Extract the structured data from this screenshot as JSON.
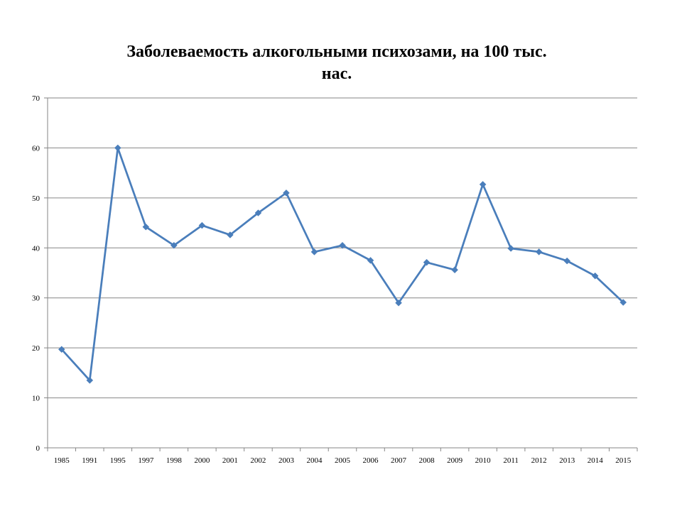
{
  "chart_data": {
    "type": "line",
    "title": {
      "line1": "Заболеваемость  алкогольными психозами, на 100 тыс.",
      "line2": "нас."
    },
    "xlabel": "",
    "ylabel": "",
    "categories": [
      "1985",
      "1991",
      "1995",
      "1997",
      "1998",
      "2000",
      "2001",
      "2002",
      "2003",
      "2004",
      "2005",
      "2006",
      "2007",
      "2008",
      "2009",
      "2010",
      "2011",
      "2012",
      "2013",
      "2014",
      "2015"
    ],
    "series": [
      {
        "values": [
          19.7,
          13.5,
          60.0,
          44.2,
          40.5,
          44.5,
          42.6,
          47.0,
          51.0,
          39.2,
          40.5,
          37.5,
          29.0,
          37.1,
          35.6,
          52.7,
          39.9,
          39.2,
          37.4,
          34.4,
          29.1
        ],
        "color": "#4a7ebb"
      }
    ],
    "ylim": [
      0,
      70
    ],
    "yticks": [
      0,
      10,
      20,
      30,
      40,
      50,
      60,
      70
    ],
    "grid": true,
    "legend": "none",
    "colors": {
      "line": "#4a7ebb",
      "gridline": "#868686",
      "axis": "#868686"
    }
  }
}
